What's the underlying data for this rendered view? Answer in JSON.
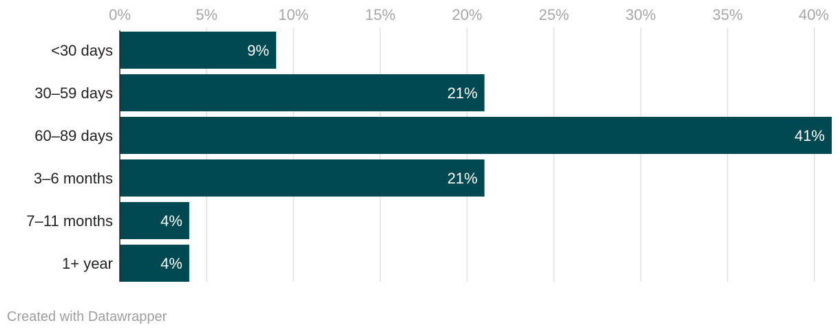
{
  "chart_data": {
    "type": "bar",
    "orientation": "horizontal",
    "categories": [
      "<30 days",
      "30–59 days",
      "60–89 days",
      "3–6 months",
      "7–11 months",
      "1+ year"
    ],
    "values": [
      9,
      21,
      41,
      21,
      4,
      4
    ],
    "value_labels": [
      "9%",
      "21%",
      "41%",
      "21%",
      "4%",
      "4%"
    ],
    "xlim": [
      0,
      41
    ],
    "xticks": [
      0,
      5,
      10,
      15,
      20,
      25,
      30,
      35,
      40
    ],
    "xtick_labels": [
      "0%",
      "5%",
      "10%",
      "15%",
      "20%",
      "25%",
      "30%",
      "35%",
      "40%"
    ],
    "xaxis_position": "top",
    "grid": true,
    "bar_color": "#004952",
    "grid_color": "#e0e0e0"
  },
  "footer": {
    "credit": "Created with Datawrapper"
  }
}
